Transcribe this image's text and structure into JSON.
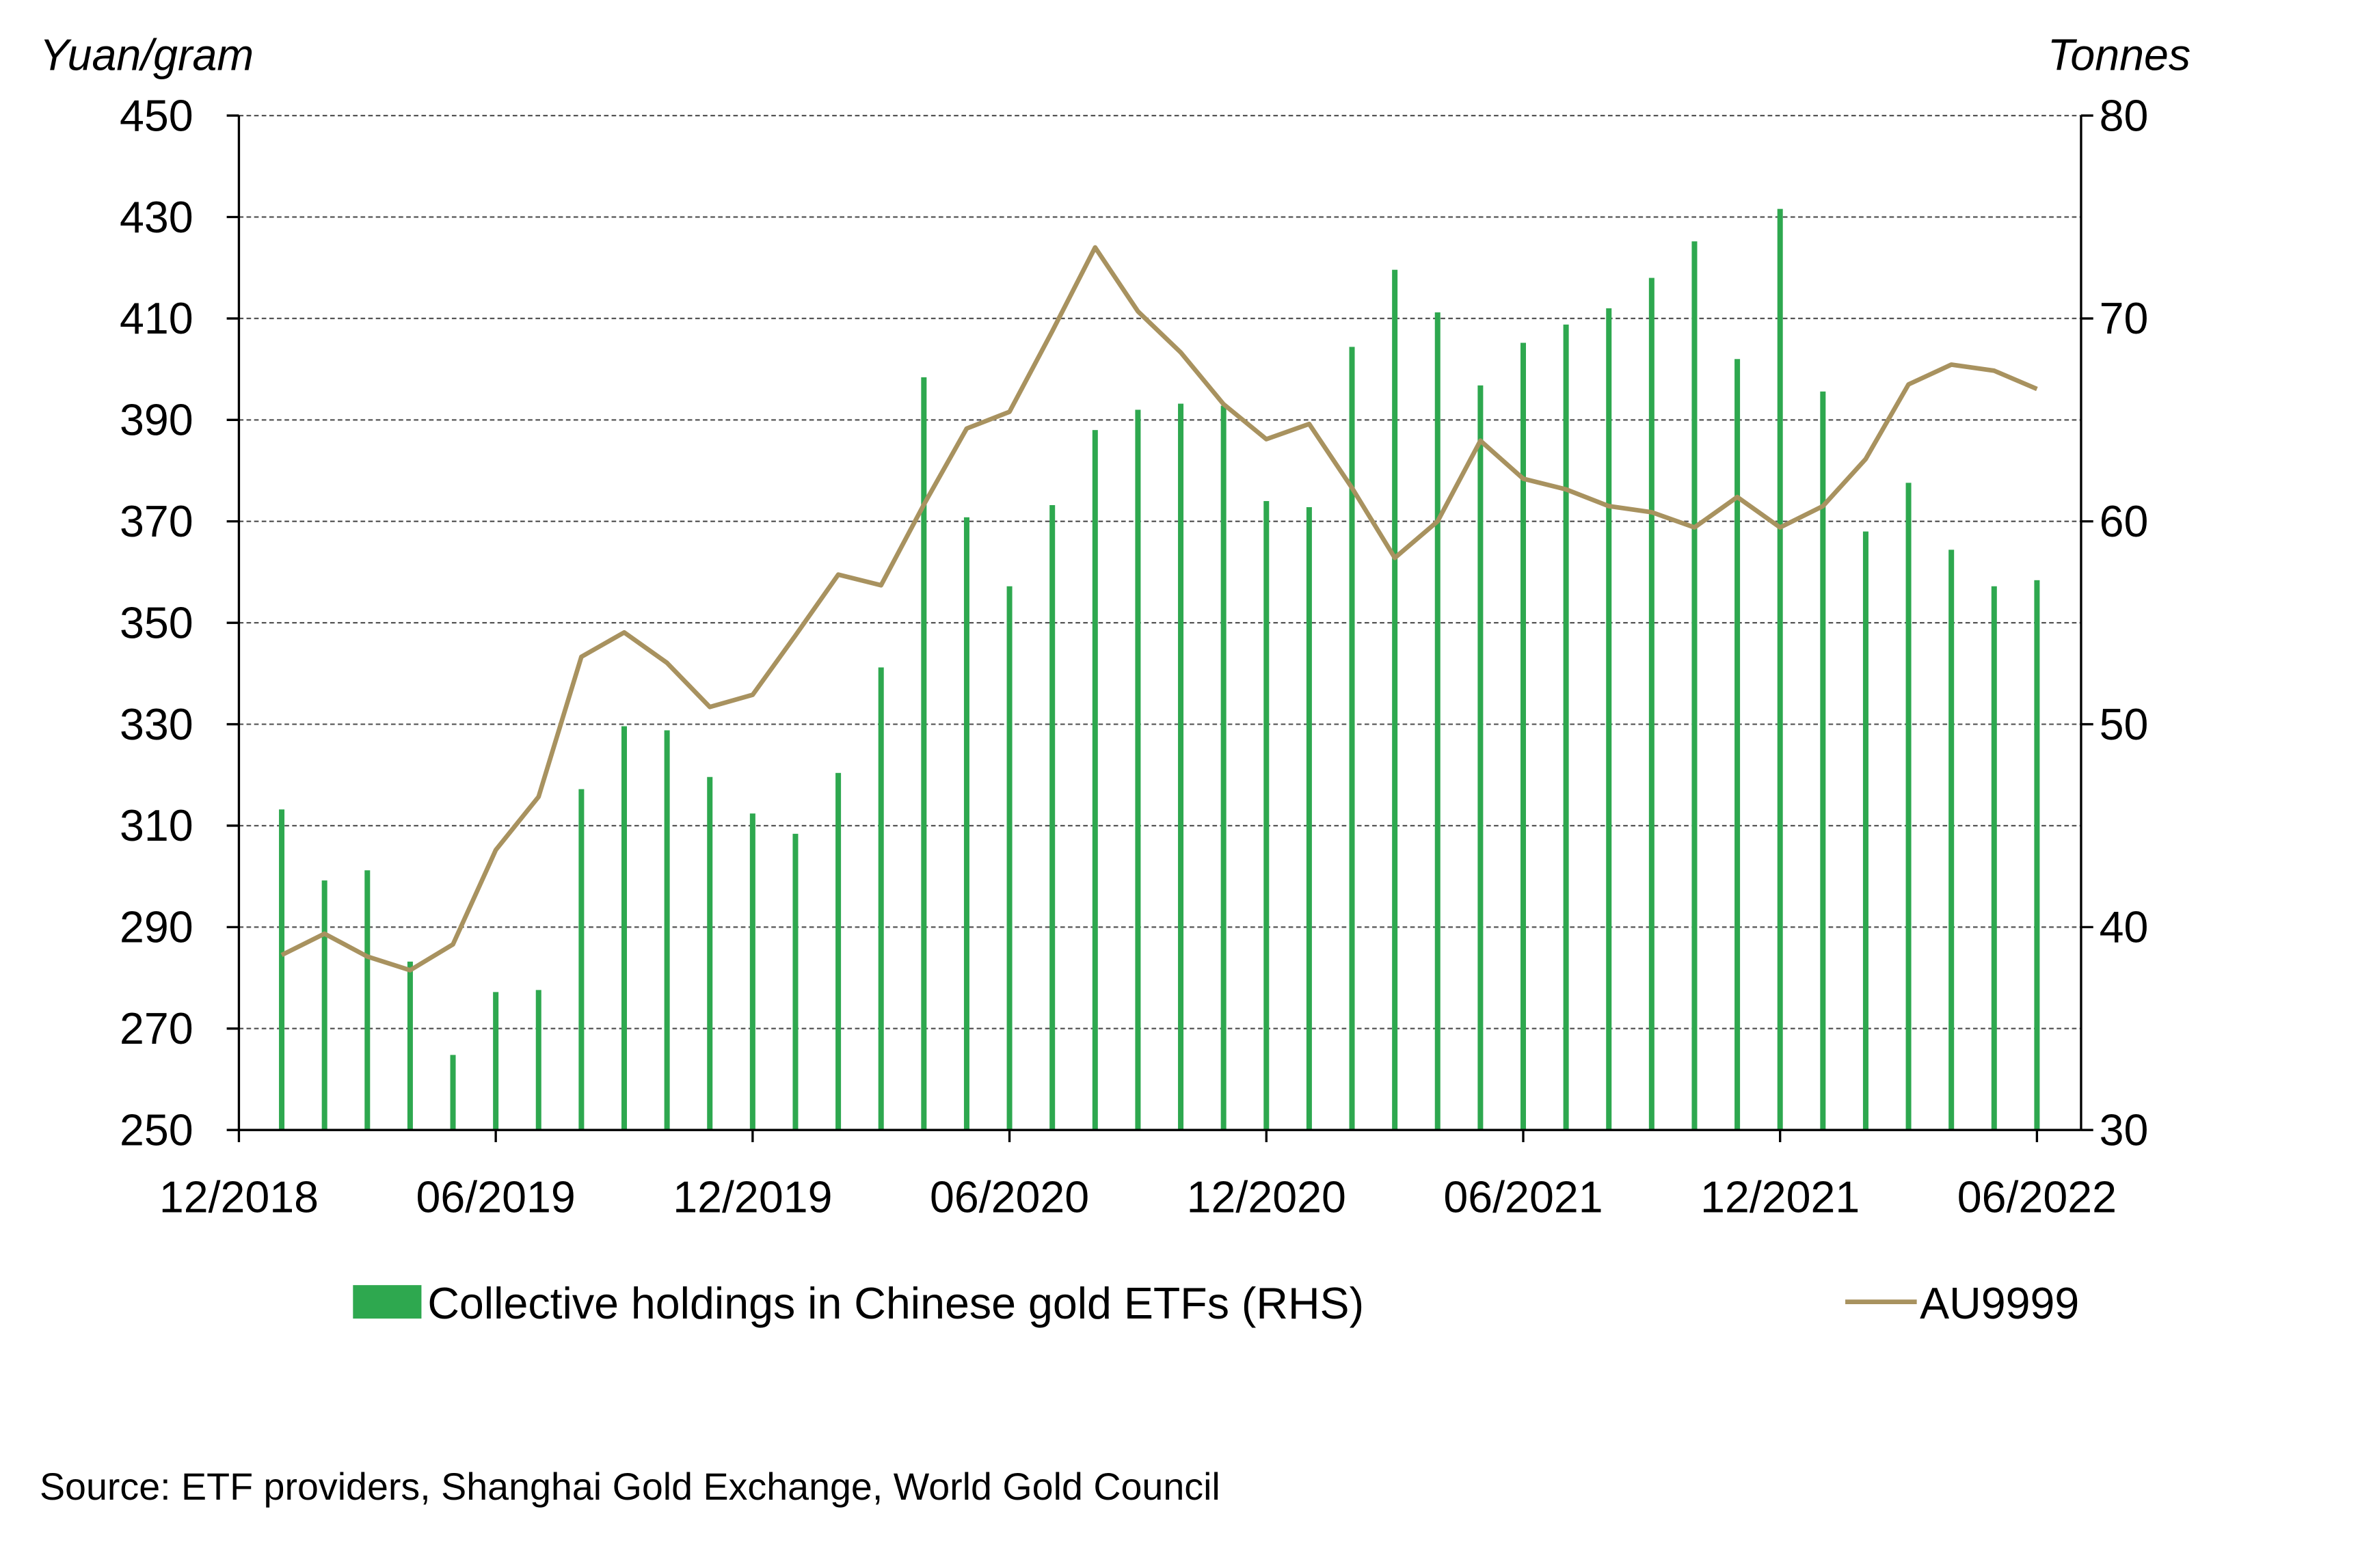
{
  "chart_data": {
    "type": "bar+line",
    "title": "",
    "source": "Source: ETF providers, Shanghai Gold Exchange, World Gold Council",
    "left_axis": {
      "label": "Yuan/gram",
      "range": [
        250,
        450
      ],
      "ticks": [
        "450",
        "430",
        "410",
        "390",
        "370",
        "350",
        "330",
        "310",
        "290",
        "270",
        "250"
      ]
    },
    "right_axis": {
      "label": "Tonnes",
      "range": [
        30,
        80
      ],
      "ticks": [
        "80",
        "70",
        "60",
        "50",
        "40",
        "30"
      ]
    },
    "x_ticks": [
      "12/2018",
      "06/2019",
      "12/2019",
      "06/2020",
      "12/2020",
      "06/2021",
      "12/2021",
      "06/2022"
    ],
    "grid": true,
    "legend_position": "bottom",
    "colors": {
      "bars": "#2ea84f",
      "line": "#a8925f",
      "grid": "#555555"
    },
    "categories": [
      "01/2019",
      "02/2019",
      "03/2019",
      "04/2019",
      "05/2019",
      "06/2019",
      "07/2019",
      "08/2019",
      "09/2019",
      "10/2019",
      "11/2019",
      "12/2019",
      "01/2020",
      "02/2020",
      "03/2020",
      "04/2020",
      "05/2020",
      "06/2020",
      "07/2020",
      "08/2020",
      "09/2020",
      "10/2020",
      "11/2020",
      "12/2020",
      "01/2021",
      "02/2021",
      "03/2021",
      "04/2021",
      "05/2021",
      "06/2021",
      "07/2021",
      "08/2021",
      "09/2021",
      "10/2021",
      "11/2021",
      "12/2021",
      "01/2022",
      "02/2022",
      "03/2022",
      "04/2022",
      "05/2022",
      "06/2022"
    ],
    "series": [
      {
        "name": "Collective holdings in Chinese gold ETFs (RHS)",
        "type": "bar",
        "axis": "right",
        "values": [
          45.8,
          42.3,
          42.8,
          38.3,
          33.7,
          36.8,
          36.9,
          46.8,
          49.9,
          49.7,
          47.4,
          45.6,
          44.6,
          47.6,
          52.8,
          67.1,
          60.2,
          56.8,
          60.8,
          64.5,
          65.5,
          65.8,
          65.7,
          61.0,
          60.7,
          68.6,
          72.4,
          70.3,
          66.7,
          68.8,
          69.7,
          70.5,
          72.0,
          73.8,
          68.0,
          75.4,
          66.4,
          59.5,
          61.9,
          58.6,
          56.8,
          57.1
        ]
      },
      {
        "name": "AU9999",
        "type": "line",
        "axis": "left",
        "values": [
          284.5,
          288.7,
          284.2,
          281.5,
          286.6,
          305.2,
          315.7,
          343.3,
          348.1,
          342.1,
          333.4,
          335.8,
          347.5,
          359.5,
          357.4,
          373.3,
          388.3,
          391.6,
          407.5,
          424.0,
          411.4,
          403.3,
          393.1,
          386.2,
          389.2,
          376.6,
          362.8,
          370.0,
          385.9,
          378.4,
          376.3,
          373.0,
          371.8,
          368.8,
          374.8,
          368.8,
          373.0,
          382.3,
          397.0,
          400.9,
          399.7,
          396.1
        ]
      }
    ]
  }
}
